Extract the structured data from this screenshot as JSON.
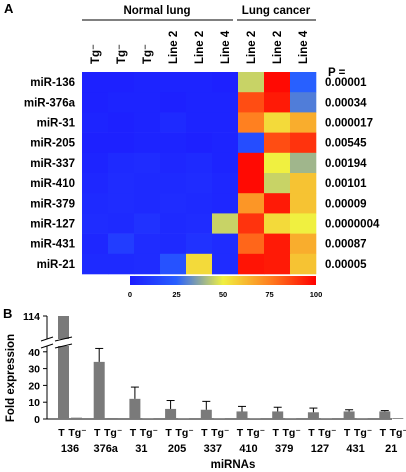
{
  "figure": {
    "panel_a": "A",
    "panel_b": "B",
    "group_normal": "Normal lung",
    "group_cancer": "Lung cancer",
    "p_header": "P =",
    "colorbar_ticks": [
      "0",
      "25",
      "50",
      "75",
      "100"
    ],
    "colorbar_colors": [
      "#1c1cff",
      "#2860ff",
      "#f0f040",
      "#ff8020",
      "#ff0000"
    ]
  },
  "chart_data": [
    {
      "type": "heatmap",
      "title": "",
      "columns": [
        "Tg⁻",
        "Tg⁻",
        "Tg⁻",
        "Line 2",
        "Line 2",
        "Line 4",
        "Line 2",
        "Line 2",
        "Line 4"
      ],
      "column_groups": [
        {
          "name": "Normal lung",
          "columns": [
            0,
            1,
            2,
            3,
            4,
            5
          ]
        },
        {
          "name": "Lung cancer",
          "columns": [
            6,
            7,
            8
          ]
        }
      ],
      "rows": [
        "miR-136",
        "miR-376a",
        "miR-31",
        "miR-205",
        "miR-337",
        "miR-410",
        "miR-379",
        "miR-127",
        "miR-431",
        "miR-21"
      ],
      "p_values": [
        "0.00001",
        "0.00034",
        "0.000017",
        "0.00545",
        "0.00194",
        "0.00101",
        "0.00009",
        "0.0000004",
        "0.00087",
        "0.00005"
      ],
      "scale": [
        0,
        100
      ],
      "values": [
        [
          2,
          2,
          3,
          3,
          3,
          2,
          45,
          98,
          25
        ],
        [
          2,
          3,
          3,
          2,
          3,
          3,
          85,
          95,
          30
        ],
        [
          3,
          2,
          3,
          5,
          3,
          3,
          75,
          55,
          65
        ],
        [
          2,
          2,
          3,
          3,
          2,
          3,
          18,
          85,
          90
        ],
        [
          3,
          5,
          6,
          4,
          5,
          3,
          98,
          50,
          40
        ],
        [
          4,
          6,
          5,
          5,
          6,
          4,
          98,
          45,
          60
        ],
        [
          5,
          6,
          5,
          6,
          5,
          4,
          70,
          95,
          60
        ],
        [
          6,
          5,
          8,
          5,
          6,
          45,
          90,
          55,
          50
        ],
        [
          4,
          12,
          6,
          5,
          8,
          6,
          80,
          95,
          65
        ],
        [
          5,
          5,
          6,
          20,
          55,
          6,
          96,
          95,
          60
        ]
      ]
    },
    {
      "type": "bar",
      "title": "",
      "xlabel": "miRNAs",
      "ylabel": "Fold expression",
      "yticks": [
        "0",
        "10",
        "20",
        "30",
        "40",
        "114"
      ],
      "axis_break": [
        45,
        110
      ],
      "categories": [
        "136",
        "376a",
        "31",
        "205",
        "337",
        "410",
        "379",
        "127",
        "431",
        "21"
      ],
      "bar_labels": [
        "T",
        "Tg⁻"
      ],
      "series": [
        {
          "name": "T",
          "values": [
            114,
            34,
            12,
            6,
            5.5,
            4.5,
            4.5,
            4,
            4.5,
            4.5
          ],
          "errors": [
            0,
            8,
            7,
            5,
            5,
            3,
            2.5,
            2.5,
            1,
            0.5
          ]
        },
        {
          "name": "Tg⁻",
          "values": [
            0.8,
            0.6,
            0.5,
            0.5,
            0.5,
            0.5,
            0.5,
            0.5,
            0.5,
            0.5
          ],
          "errors": [
            0,
            0,
            0,
            0,
            0,
            0,
            0,
            0,
            0,
            0
          ]
        }
      ]
    }
  ]
}
